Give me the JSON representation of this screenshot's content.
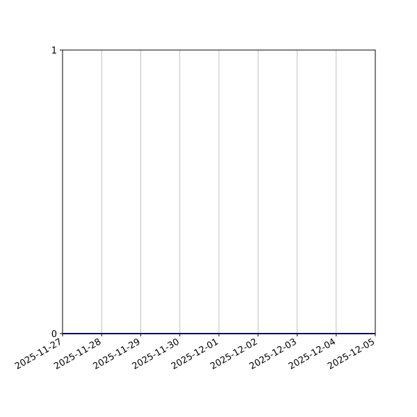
{
  "chart_data": {
    "type": "line",
    "title": "",
    "xlabel": "",
    "ylabel": "",
    "x": [
      "2025-11-27",
      "2025-11-28",
      "2025-11-29",
      "2025-11-30",
      "2025-12-01",
      "2025-12-02",
      "2025-12-03",
      "2025-12-04",
      "2025-12-05"
    ],
    "series": [
      {
        "values": [
          0,
          0,
          0,
          0,
          0,
          0,
          0,
          0,
          0
        ],
        "color": "#1a1aa6"
      }
    ],
    "x_tick_labels": [
      "2025-11-27",
      "2025-11-28",
      "2025-11-29",
      "2025-11-30",
      "2025-12-01",
      "2025-12-02",
      "2025-12-03",
      "2025-12-04",
      "2025-12-05"
    ],
    "y_tick_labels": [
      "0",
      "1"
    ],
    "y_ticks": [
      0,
      1
    ],
    "ylim": [
      0,
      1
    ],
    "xlim": [
      "2025-11-27",
      "2025-12-05"
    ],
    "grid": "vertical",
    "grid_color": "#b0b0b0"
  }
}
